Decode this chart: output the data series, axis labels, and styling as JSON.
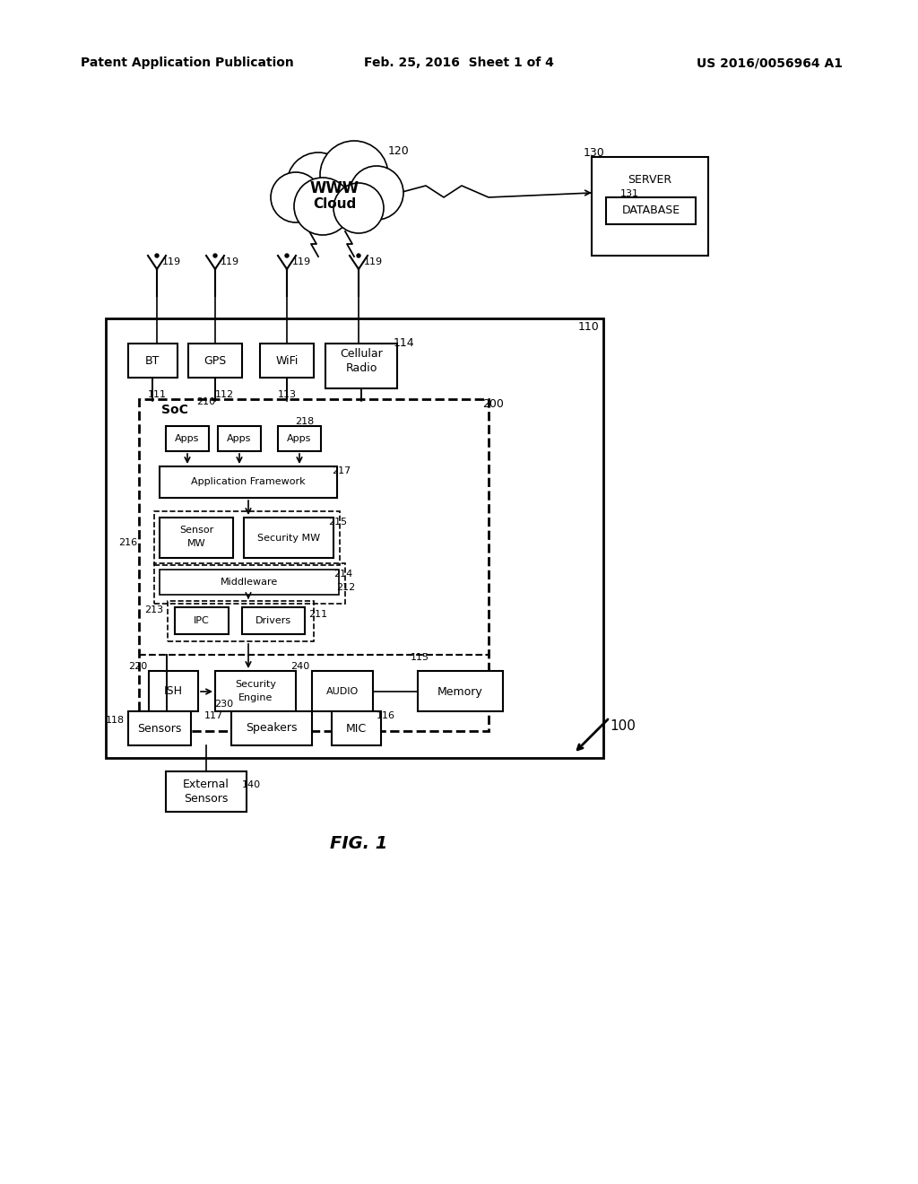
{
  "bg_color": "#ffffff",
  "header_left": "Patent Application Publication",
  "header_mid": "Feb. 25, 2016  Sheet 1 of 4",
  "header_right": "US 2016/0056964 A1",
  "fig_label": "FIG. 1",
  "label_100": "100",
  "label_110": "110",
  "label_111": "111",
  "label_112": "112",
  "label_113": "113",
  "label_114": "114",
  "label_115": "115",
  "label_116": "116",
  "label_117": "117",
  "label_118": "118",
  "label_119": "119",
  "label_120": "120",
  "label_130": "130",
  "label_131": "131",
  "label_140": "140",
  "label_200": "200",
  "label_210": "210",
  "label_211": "211",
  "label_212": "212",
  "label_213": "213",
  "label_214": "214",
  "label_215": "215",
  "label_216": "216",
  "label_217": "217",
  "label_218": "218",
  "label_220": "220",
  "label_230": "230",
  "label_240": "240"
}
